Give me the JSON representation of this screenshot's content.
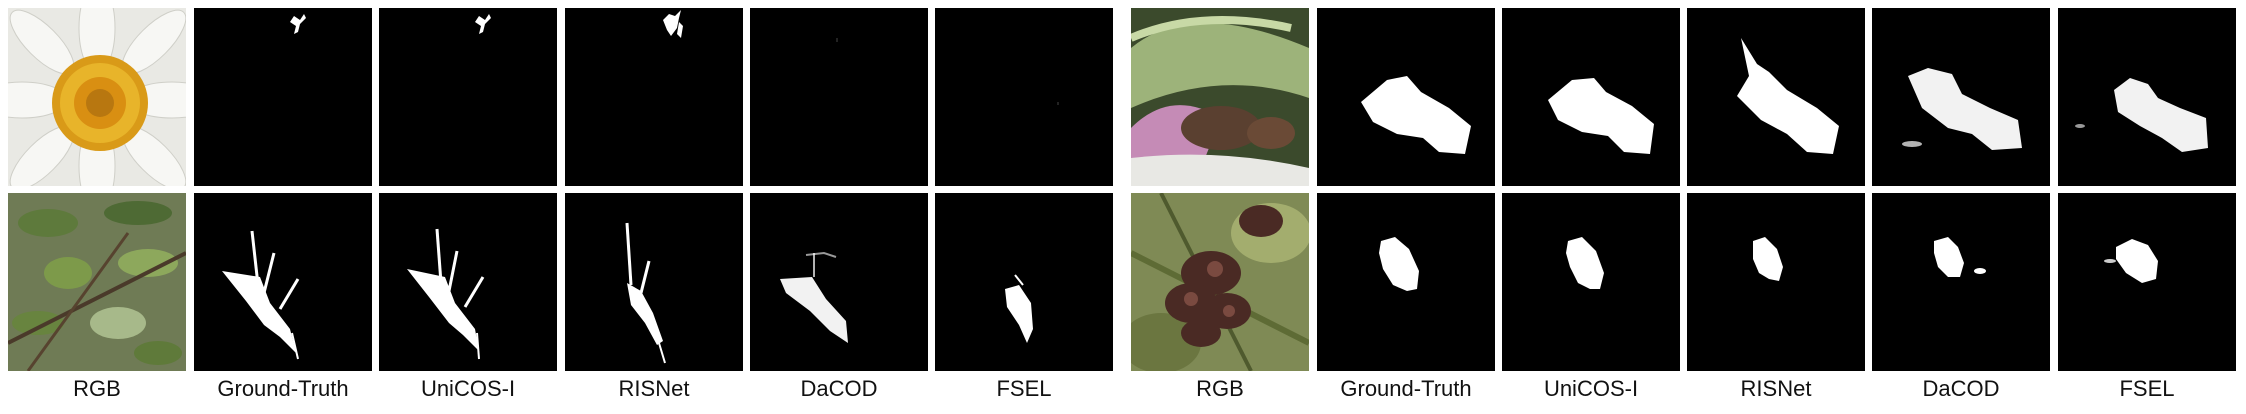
{
  "left_group": {
    "columns": [
      "RGB",
      "Ground-Truth",
      "UniCOS-I",
      "RISNet",
      "DaCOD",
      "FSEL"
    ],
    "rows": [
      "white daisy flower close-up",
      "leafy branch with camouflaged insect"
    ]
  },
  "right_group": {
    "columns": [
      "RGB",
      "Ground-Truth",
      "UniCOS-I",
      "RISNet",
      "DaCOD",
      "FSEL"
    ],
    "rows": [
      "animal hidden in pink-green leaves",
      "dried brown flower cluster"
    ]
  }
}
